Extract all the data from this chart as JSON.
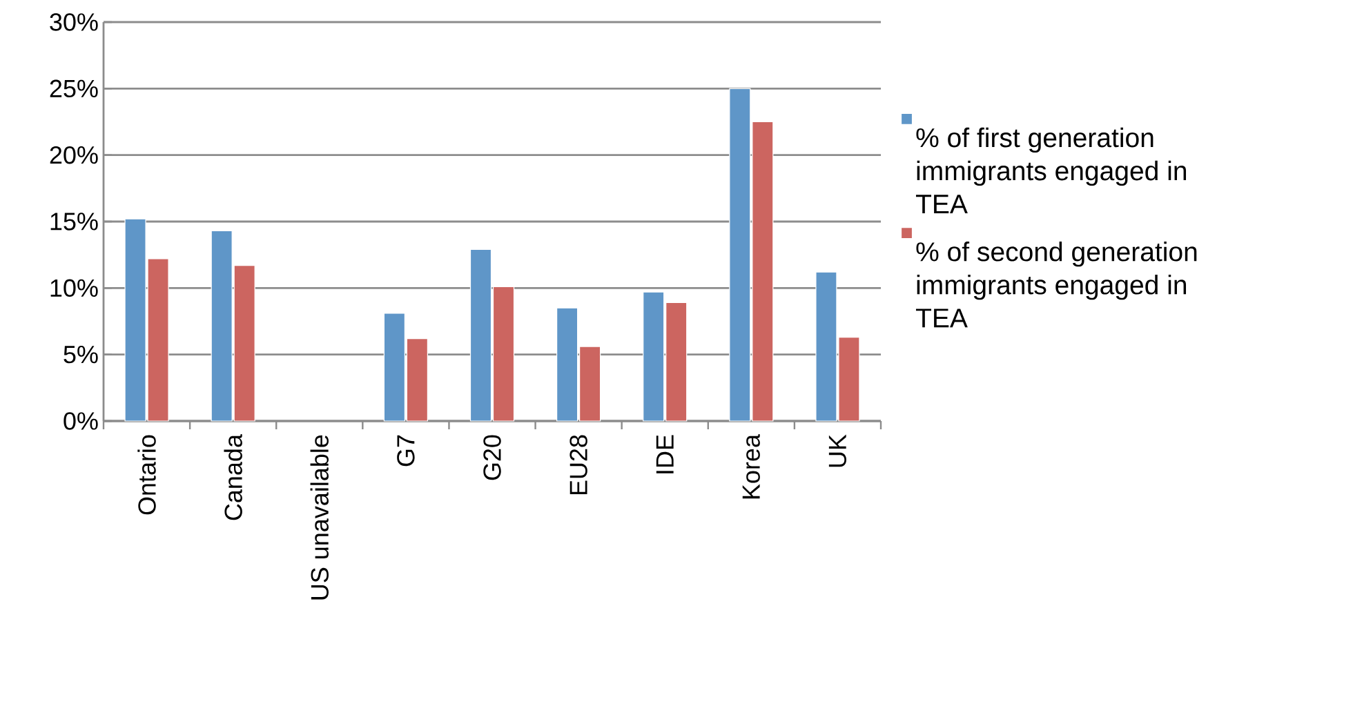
{
  "chart_data": {
    "type": "bar",
    "categories": [
      "Ontario",
      "Canada",
      "US unavailable",
      "G7",
      "G20",
      "EU28",
      "IDE",
      "Korea",
      "UK"
    ],
    "series": [
      {
        "name": "% of first generation immigrants engaged in TEA",
        "color": "#5f96c8",
        "values": [
          15.2,
          14.3,
          null,
          8.1,
          12.9,
          8.5,
          9.7,
          25.0,
          11.2
        ]
      },
      {
        "name": "% of second generation immigrants engaged in TEA",
        "color": "#cc6560",
        "values": [
          12.2,
          11.7,
          null,
          6.2,
          10.1,
          5.6,
          8.9,
          22.5,
          6.3
        ]
      }
    ],
    "ylim": [
      0,
      30
    ],
    "yticks": [
      {
        "value": 0,
        "label": "0%"
      },
      {
        "value": 5,
        "label": "5%"
      },
      {
        "value": 10,
        "label": "10%"
      },
      {
        "value": 15,
        "label": "15%"
      },
      {
        "value": 20,
        "label": "20%"
      },
      {
        "value": 25,
        "label": "25%"
      },
      {
        "value": 30,
        "label": "30%"
      }
    ],
    "grid": "y",
    "legend": "right"
  }
}
